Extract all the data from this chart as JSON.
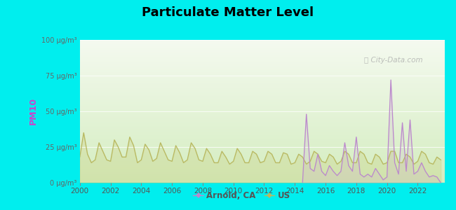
{
  "title": "Particulate Matter Level",
  "ylabel": "PM10",
  "background_outer": "#00EEEE",
  "background_gradient_top": "#e8f5e0",
  "background_gradient_bottom": "#d4edc0",
  "us_color": "#b8b860",
  "us_fill_color": "#c8c870",
  "arnold_color": "#bb88cc",
  "arnold_fill_color": "#cc99dd",
  "ylim": [
    0,
    100
  ],
  "yticks": [
    0,
    25,
    50,
    75,
    100
  ],
  "ytick_labels": [
    "0 μg/m³",
    "25 μg/m³",
    "50 μg/m³",
    "75 μg/m³",
    "100 μg/m³"
  ],
  "xlim": [
    2000,
    2023.75
  ],
  "xticks": [
    2000,
    2002,
    2004,
    2006,
    2008,
    2010,
    2012,
    2014,
    2016,
    2018,
    2020,
    2022
  ],
  "watermark": "ⓘ City-Data.com",
  "legend_labels": [
    "Arnold, CA",
    "US"
  ],
  "us_data_years": [
    2000.0,
    2000.25,
    2000.5,
    2000.75,
    2001.0,
    2001.25,
    2001.5,
    2001.75,
    2002.0,
    2002.25,
    2002.5,
    2002.75,
    2003.0,
    2003.25,
    2003.5,
    2003.75,
    2004.0,
    2004.25,
    2004.5,
    2004.75,
    2005.0,
    2005.25,
    2005.5,
    2005.75,
    2006.0,
    2006.25,
    2006.5,
    2006.75,
    2007.0,
    2007.25,
    2007.5,
    2007.75,
    2008.0,
    2008.25,
    2008.5,
    2008.75,
    2009.0,
    2009.25,
    2009.5,
    2009.75,
    2010.0,
    2010.25,
    2010.5,
    2010.75,
    2011.0,
    2011.25,
    2011.5,
    2011.75,
    2012.0,
    2012.25,
    2012.5,
    2012.75,
    2013.0,
    2013.25,
    2013.5,
    2013.75,
    2014.0,
    2014.25,
    2014.5,
    2014.75,
    2015.0,
    2015.25,
    2015.5,
    2015.75,
    2016.0,
    2016.25,
    2016.5,
    2016.75,
    2017.0,
    2017.25,
    2017.5,
    2017.75,
    2018.0,
    2018.25,
    2018.5,
    2018.75,
    2019.0,
    2019.25,
    2019.5,
    2019.75,
    2020.0,
    2020.25,
    2020.5,
    2020.75,
    2021.0,
    2021.25,
    2021.5,
    2021.75,
    2022.0,
    2022.25,
    2022.5,
    2022.75,
    2023.0,
    2023.25,
    2023.5
  ],
  "us_data_values": [
    18,
    35,
    20,
    14,
    16,
    28,
    22,
    16,
    15,
    30,
    25,
    18,
    18,
    32,
    26,
    14,
    16,
    27,
    23,
    15,
    17,
    28,
    22,
    16,
    15,
    26,
    21,
    14,
    16,
    28,
    24,
    16,
    15,
    24,
    20,
    14,
    14,
    22,
    18,
    13,
    15,
    24,
    20,
    14,
    14,
    22,
    20,
    14,
    15,
    22,
    20,
    14,
    14,
    21,
    20,
    13,
    14,
    20,
    18,
    13,
    15,
    22,
    20,
    15,
    14,
    20,
    18,
    13,
    15,
    22,
    20,
    14,
    14,
    22,
    20,
    14,
    13,
    20,
    18,
    13,
    14,
    22,
    22,
    14,
    14,
    20,
    18,
    13,
    15,
    22,
    20,
    14,
    13,
    18,
    16
  ],
  "arnold_data_years": [
    2014.5,
    2014.75,
    2015.0,
    2015.25,
    2015.5,
    2015.75,
    2016.0,
    2016.25,
    2016.5,
    2016.75,
    2017.0,
    2017.25,
    2017.5,
    2017.75,
    2018.0,
    2018.25,
    2018.5,
    2018.75,
    2019.0,
    2019.25,
    2019.5,
    2019.75,
    2020.0,
    2020.25,
    2020.5,
    2020.75,
    2021.0,
    2021.25,
    2021.5,
    2021.75,
    2022.0,
    2022.25,
    2022.5,
    2022.75,
    2023.0,
    2023.25,
    2023.5
  ],
  "arnold_data_values": [
    0,
    48,
    10,
    8,
    20,
    8,
    5,
    12,
    8,
    5,
    8,
    28,
    12,
    8,
    32,
    6,
    4,
    6,
    4,
    10,
    6,
    2,
    4,
    72,
    14,
    6,
    42,
    8,
    44,
    6,
    8,
    14,
    8,
    4,
    5,
    4,
    0
  ]
}
